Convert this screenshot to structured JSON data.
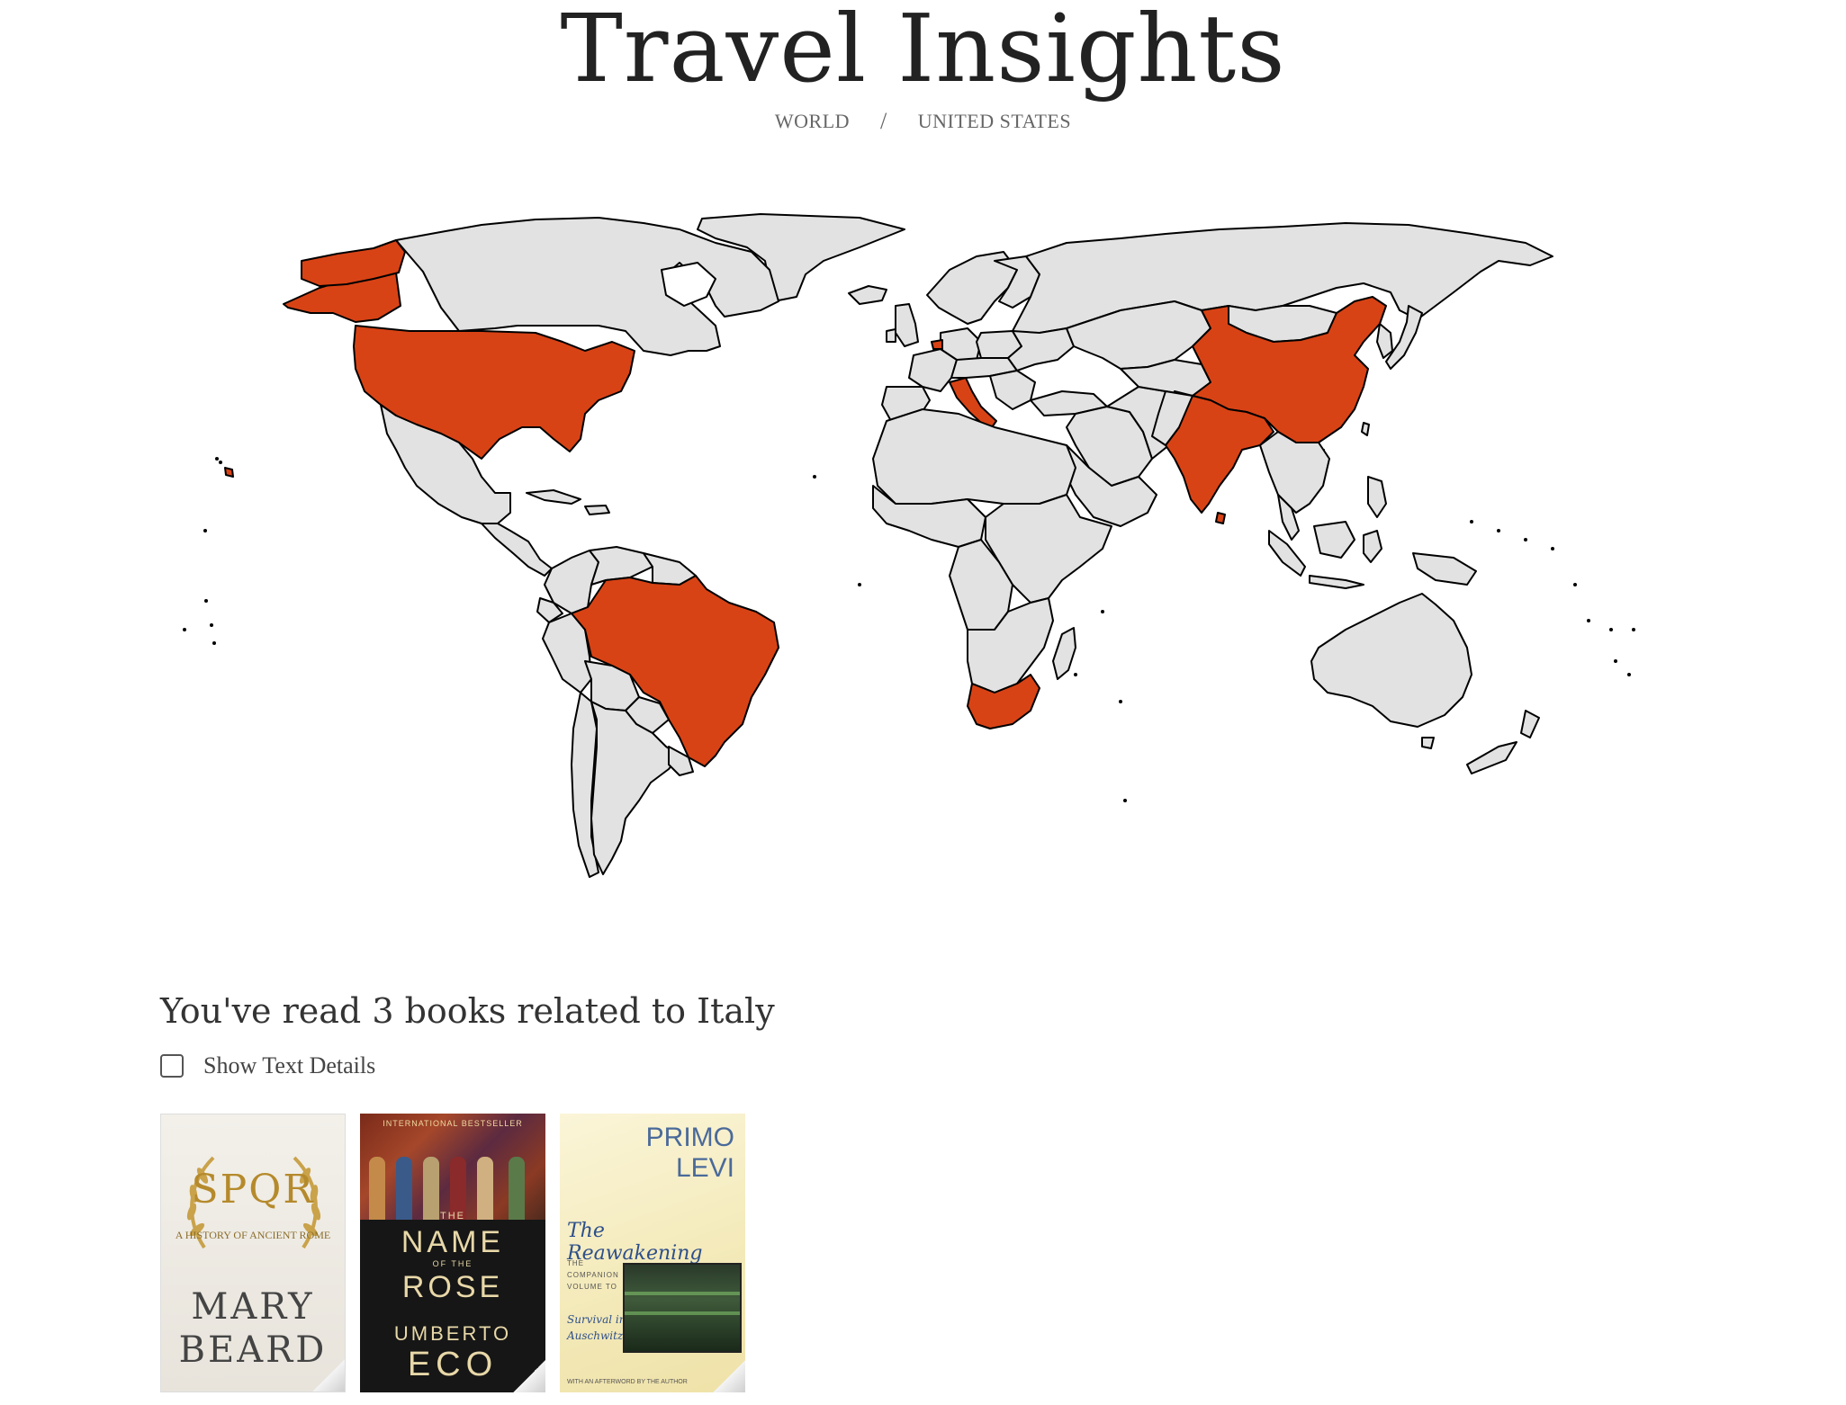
{
  "header": {
    "title": "Travel Insights",
    "breadcrumb": {
      "world": "WORLD",
      "separator": "/",
      "current": "UNITED STATES"
    }
  },
  "map": {
    "style": {
      "visited_color": "#d84315",
      "unvisited_color": "#e2e2e2",
      "border_color": "#000000"
    },
    "visited_countries": [
      "United States",
      "Alaska (United States)",
      "Brazil",
      "Italy",
      "China",
      "India",
      "South Africa",
      "Hawaii (United States)"
    ]
  },
  "books_section": {
    "heading": "You've read 3 books related to Italy",
    "show_details_label": "Show Text Details",
    "show_details_checked": false,
    "books": [
      {
        "cover_title_big": "SPQR",
        "cover_subtitle": "A HISTORY OF ANCIENT ROME",
        "cover_author_1": "MARY",
        "cover_author_2": "BEARD"
      },
      {
        "cover_banner": "INTERNATIONAL BESTSELLER",
        "cover_title_1": "THE",
        "cover_title_2": "NAME",
        "cover_title_3": "OF THE",
        "cover_title_4": "ROSE",
        "cover_author_1": "UMBERTO",
        "cover_author_2": "ECO"
      },
      {
        "cover_author_1": "PRIMO",
        "cover_author_2": "LEVI",
        "cover_title": "The Reawakening",
        "cover_subtitle": "THE COMPANION VOLUME TO",
        "cover_subtitle_2a": "Survival in",
        "cover_subtitle_2b": "Auschwitz",
        "cover_footer": "WITH AN AFTERWORD BY THE AUTHOR"
      }
    ]
  }
}
